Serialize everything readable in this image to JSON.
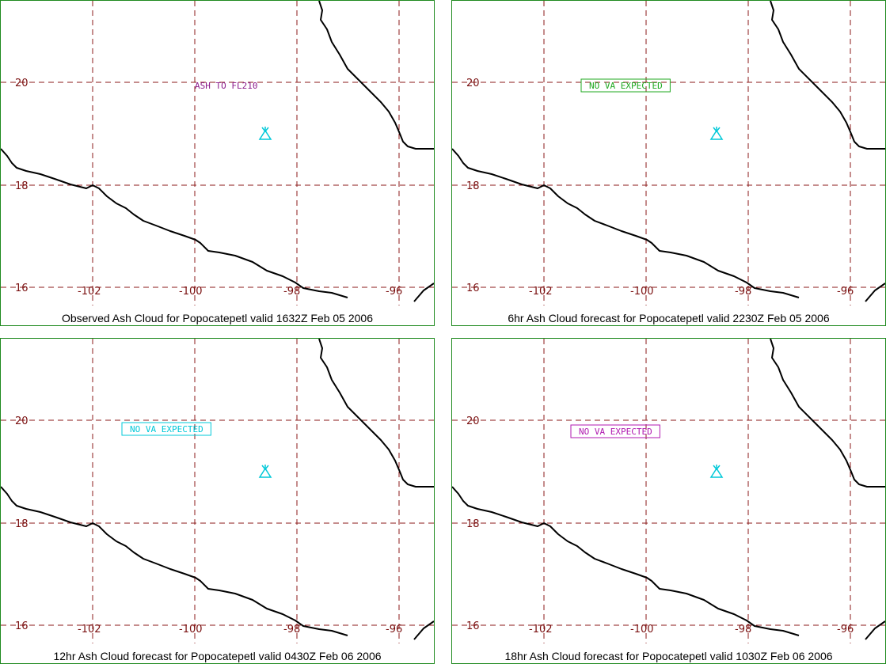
{
  "map": {
    "lat_labels": [
      "20",
      "18",
      "16"
    ],
    "lon_labels": [
      "-102",
      "-100",
      "-98",
      "-96"
    ],
    "grid_color": "#8b1a1a",
    "coast_color": "#000000",
    "volcano_icon": "volcano-icon",
    "volcano_color": "#00c8d8"
  },
  "panels": [
    {
      "caption": "Observed Ash Cloud for Popocatepetl valid 1632Z Feb 05 2006",
      "annotation": "ASH TO FL210",
      "annotation_color": "#8b1a8b",
      "annotation_boxed": false
    },
    {
      "caption": "6hr Ash Cloud forecast for Popocatepetl valid 2230Z Feb 05 2006",
      "annotation": "NO VA EXPECTED",
      "annotation_color": "#1fa81f",
      "annotation_boxed": true
    },
    {
      "caption": "12hr Ash Cloud forecast for Popocatepetl valid 0430Z Feb 06 2006",
      "annotation": "NO VA EXPECTED",
      "annotation_color": "#00c8d8",
      "annotation_boxed": true
    },
    {
      "caption": "18hr Ash Cloud forecast for Popocatepetl valid 1030Z Feb 06 2006",
      "annotation": "NO VA EXPECTED",
      "annotation_color": "#b01ab0",
      "annotation_boxed": true
    }
  ]
}
